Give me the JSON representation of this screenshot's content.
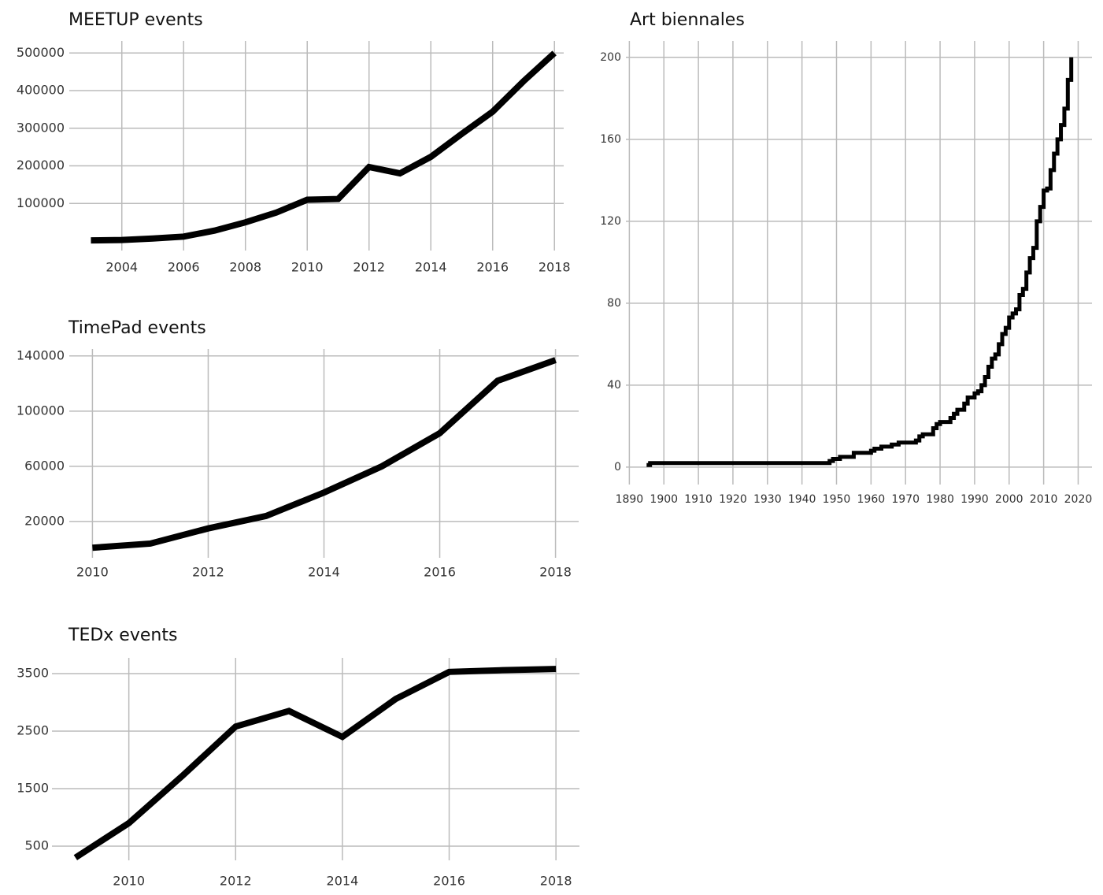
{
  "chart_data": [
    {
      "type": "line",
      "title": "MEETUP events",
      "x": [
        2003,
        2004,
        2005,
        2006,
        2007,
        2008,
        2009,
        2010,
        2011,
        2012,
        2013,
        2014,
        2015,
        2016,
        2017,
        2018
      ],
      "values": [
        2000,
        3000,
        7000,
        12000,
        28000,
        50000,
        76000,
        110000,
        112000,
        197000,
        180000,
        224000,
        285000,
        344000,
        425000,
        500000
      ],
      "color": "#000000",
      "xlim": [
        2002.3,
        2018.3
      ],
      "xticks": [
        2004,
        2006,
        2008,
        2010,
        2012,
        2014,
        2016,
        2018
      ],
      "ylim": [
        -25000,
        532000
      ],
      "yticks": [
        100000,
        200000,
        300000,
        400000,
        500000
      ],
      "grid": true
    },
    {
      "type": "line",
      "title": "TimePad events",
      "x": [
        2010,
        2011,
        2012,
        2013,
        2014,
        2015,
        2016,
        2017,
        2018
      ],
      "values": [
        1000,
        4000,
        15000,
        24000,
        41000,
        60000,
        84000,
        122000,
        137000
      ],
      "color": "#000000",
      "xlim": [
        2009.6,
        2018.4
      ],
      "xticks": [
        2010,
        2012,
        2014,
        2016,
        2018
      ],
      "ylim": [
        -6300,
        145000
      ],
      "yticks": [
        20000,
        60000,
        100000,
        140000
      ],
      "grid": true
    },
    {
      "type": "line",
      "title": "TEDx events",
      "x": [
        2009,
        2010,
        2011,
        2012,
        2013,
        2014,
        2015,
        2016,
        2017,
        2018
      ],
      "values": [
        300,
        900,
        1720,
        2580,
        2850,
        2400,
        3060,
        3530,
        3560,
        3580
      ],
      "color": "#000000",
      "xlim": [
        2008.56,
        2018.44
      ],
      "xticks": [
        2010,
        2012,
        2014,
        2016,
        2018
      ],
      "ylim": [
        253,
        3774
      ],
      "yticks": [
        500,
        1500,
        2500,
        3500
      ],
      "grid": true
    },
    {
      "type": "step",
      "title": "Art biennales",
      "x": [
        1895,
        1896,
        1947,
        1948,
        1949,
        1951,
        1955,
        1960,
        1961,
        1963,
        1966,
        1968,
        1973,
        1974,
        1975,
        1978,
        1979,
        1980,
        1983,
        1984,
        1985,
        1987,
        1988,
        1990,
        1991,
        1992,
        1993,
        1994,
        1995,
        1996,
        1997,
        1998,
        1999,
        2000,
        2001,
        2002,
        2003,
        2004,
        2005,
        2006,
        2007,
        2008,
        2009,
        2010,
        2011,
        2012,
        2013,
        2014,
        2015,
        2016,
        2017,
        2018
      ],
      "values": [
        1,
        2,
        2,
        3,
        4,
        5,
        7,
        8,
        9,
        10,
        11,
        12,
        13,
        15,
        16,
        19,
        21,
        22,
        24,
        26,
        28,
        31,
        34,
        36,
        37,
        40,
        44,
        49,
        53,
        55,
        60,
        65,
        68,
        73,
        75,
        77,
        84,
        87,
        95,
        102,
        107,
        120,
        127,
        135,
        136,
        145,
        153,
        160,
        167,
        175,
        189,
        200
      ],
      "color": "#000000",
      "xlim": [
        1889,
        2024
      ],
      "xticks": [
        1890,
        1900,
        1910,
        1920,
        1930,
        1940,
        1950,
        1960,
        1970,
        1980,
        1990,
        2000,
        2010,
        2020
      ],
      "ylim": [
        -8.5,
        208
      ],
      "yticks": [
        0,
        40,
        80,
        120,
        160,
        200
      ],
      "grid": true
    }
  ]
}
